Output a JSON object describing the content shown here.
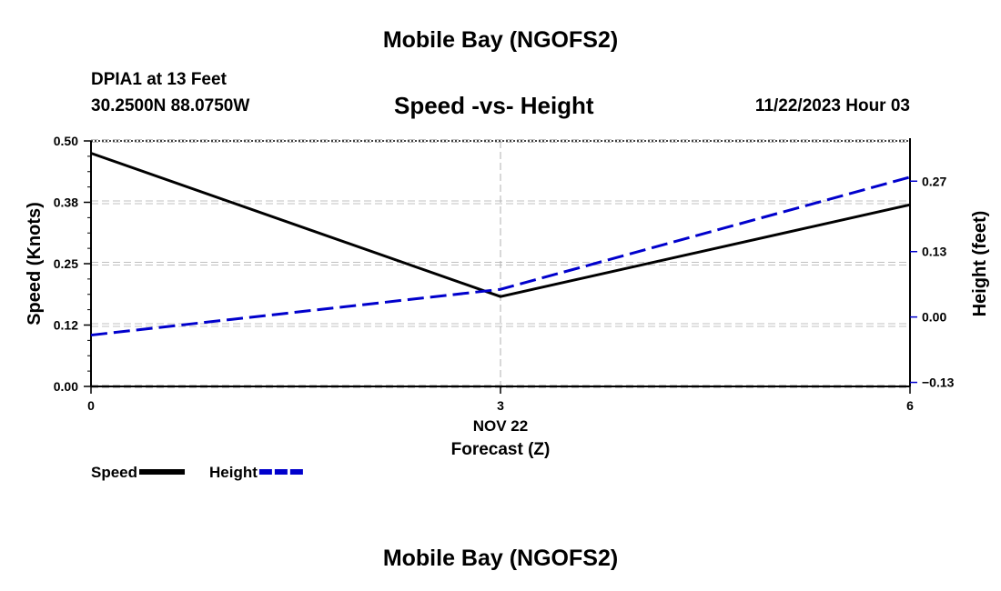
{
  "header": {
    "title": "Mobile Bay (NGOFS2)",
    "station": "DPIA1 at 13 Feet",
    "coordinates": "30.2500N  88.0750W",
    "chart_title": "Speed -vs- Height",
    "datetime": "11/22/2023 Hour 03"
  },
  "footer": {
    "title": "Mobile Bay (NGOFS2)"
  },
  "chart_data": {
    "type": "line",
    "title": "Speed -vs- Height",
    "xlabel": "Forecast (Z)",
    "x_sublabel": "NOV 22",
    "x": [
      0,
      3,
      6
    ],
    "x_ticks": [
      "0",
      "3",
      "6"
    ],
    "xlim": [
      0,
      6
    ],
    "left_axis": {
      "label": "Speed (Knots)",
      "ylim": [
        0,
        0.5
      ],
      "ticks": [
        0.0,
        0.125,
        0.25,
        0.375,
        0.5
      ],
      "tick_labels": [
        "0.00",
        "0.12",
        "0.25",
        "0.38",
        "0.50"
      ]
    },
    "right_axis": {
      "label": "Height (feet)",
      "ylim": [
        -0.138,
        0.35
      ],
      "ticks": [
        -0.13,
        0.0,
        0.13,
        0.27
      ],
      "tick_labels": [
        "−0.13",
        "0.00",
        "0.13",
        "0.27"
      ]
    },
    "series": [
      {
        "name": "Speed",
        "axis": "left",
        "style": "solid",
        "color": "#000000",
        "values": [
          0.475,
          0.183,
          0.37
        ]
      },
      {
        "name": "Height",
        "axis": "right",
        "style": "dashed",
        "color": "#0000cc",
        "values": [
          -0.036,
          0.055,
          0.278
        ]
      }
    ],
    "legend": {
      "position": "bottom-left",
      "entries": [
        "Speed",
        "Height"
      ]
    },
    "grid": true
  }
}
